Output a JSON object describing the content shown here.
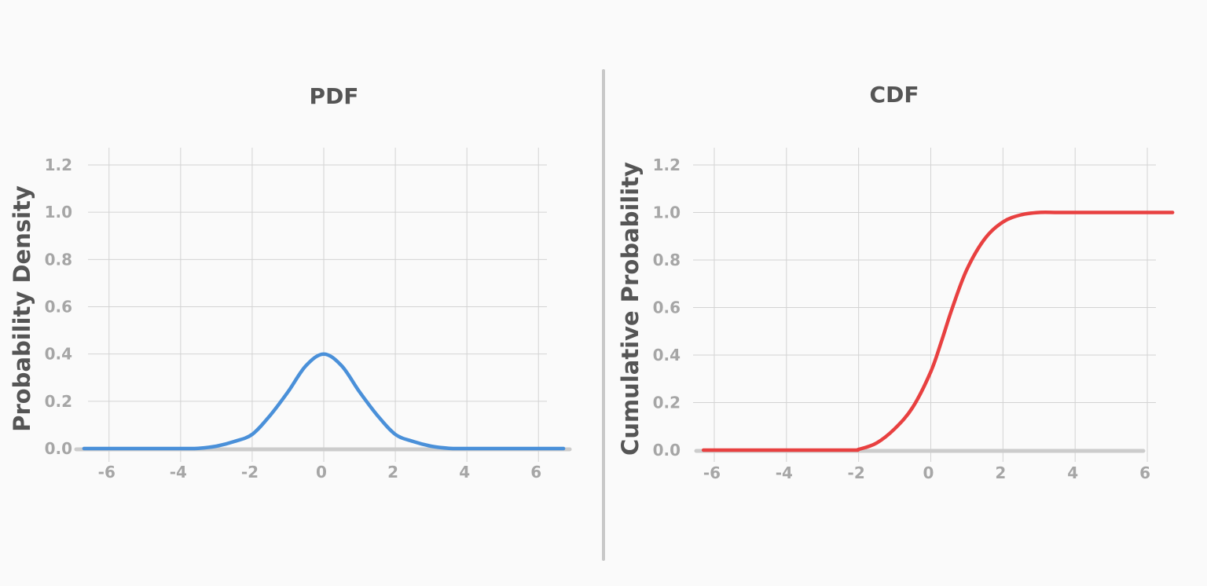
{
  "chart_data": [
    {
      "type": "line",
      "title": "PDF",
      "xlabel": "",
      "ylabel": "Probability Density",
      "xlim": [
        -6.5,
        6.5
      ],
      "ylim": [
        0,
        1.2
      ],
      "x_ticks": [
        -6,
        -4,
        -2,
        0,
        2,
        4,
        6
      ],
      "y_ticks": [
        0.0,
        0.2,
        0.4,
        0.6,
        0.8,
        1.0,
        1.2
      ],
      "x_tick_labels": [
        "-6",
        "-4",
        "-2",
        "0",
        "2",
        "4",
        "6"
      ],
      "y_tick_labels": [
        "0.0",
        "0.2",
        "0.4",
        "0.6",
        "0.8",
        "1.0",
        "1.2"
      ],
      "grid": true,
      "color": "#4a90d9",
      "series": [
        {
          "name": "PDF",
          "x": [
            -6.7,
            -5,
            -4,
            -3.5,
            -3,
            -2.5,
            -2,
            -1.5,
            -1,
            -0.5,
            0,
            0.5,
            1,
            1.5,
            2,
            2.5,
            3,
            3.5,
            4,
            5,
            6.7
          ],
          "y": [
            0,
            0,
            0,
            0.001,
            0.01,
            0.03,
            0.06,
            0.14,
            0.24,
            0.35,
            0.4,
            0.35,
            0.24,
            0.14,
            0.06,
            0.03,
            0.01,
            0.001,
            0,
            0,
            0
          ]
        }
      ]
    },
    {
      "type": "line",
      "title": "CDF",
      "xlabel": "",
      "ylabel": "Cumulative Probability",
      "xlim": [
        -6.5,
        6.5
      ],
      "ylim": [
        0,
        1.2
      ],
      "x_ticks": [
        -6,
        -4,
        -2,
        0,
        2,
        4,
        6
      ],
      "y_ticks": [
        0.0,
        0.2,
        0.4,
        0.6,
        0.8,
        1.0,
        1.2
      ],
      "x_tick_labels": [
        "-6",
        "-4",
        "-2",
        "0",
        "2",
        "4",
        "6"
      ],
      "y_tick_labels": [
        "0.0",
        "0.2",
        "0.4",
        "0.6",
        "0.8",
        "1.0",
        "1.2"
      ],
      "grid": true,
      "color": "#e84040",
      "series": [
        {
          "name": "CDF",
          "x": [
            -6.3,
            -4,
            -2.2,
            -2,
            -1.5,
            -1,
            -0.5,
            0,
            0.3,
            0.6,
            1,
            1.5,
            2,
            2.5,
            3,
            3.5,
            4,
            5,
            6.7
          ],
          "y": [
            0,
            0,
            0,
            0.003,
            0.03,
            0.09,
            0.18,
            0.33,
            0.46,
            0.6,
            0.76,
            0.89,
            0.96,
            0.99,
            1.0,
            1.0,
            1.0,
            1.0,
            1.0
          ]
        }
      ]
    }
  ]
}
